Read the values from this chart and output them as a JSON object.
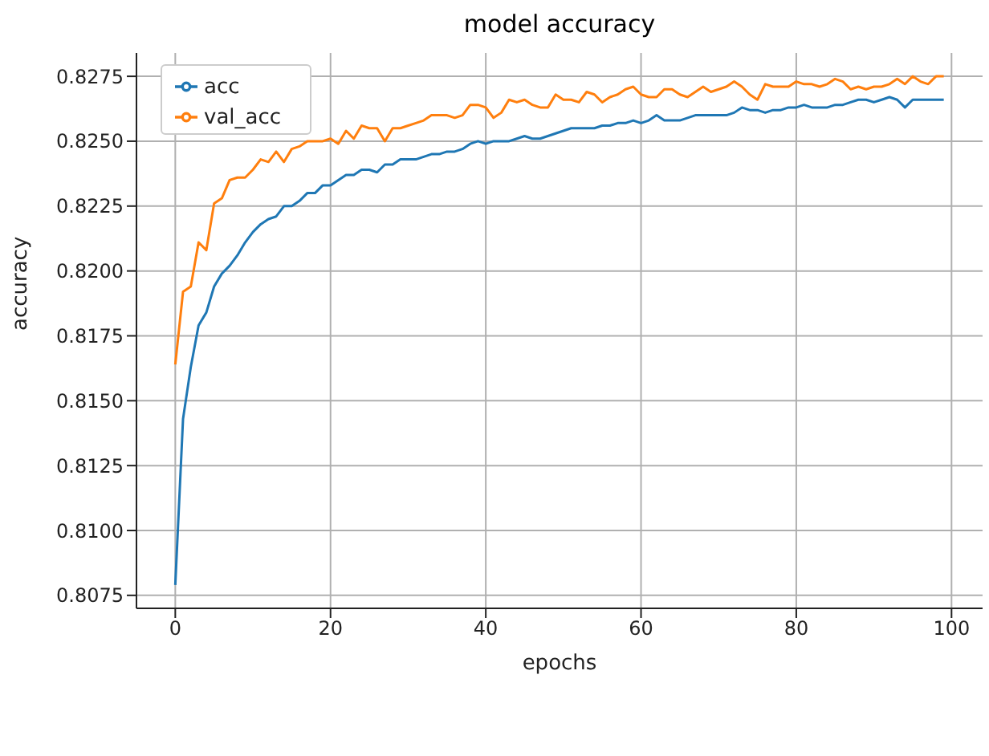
{
  "chart_data": {
    "type": "line",
    "title": "model accuracy",
    "xlabel": "epochs",
    "ylabel": "accuracy",
    "x": [
      0,
      1,
      2,
      3,
      4,
      5,
      6,
      7,
      8,
      9,
      10,
      11,
      12,
      13,
      14,
      15,
      16,
      17,
      18,
      19,
      20,
      21,
      22,
      23,
      24,
      25,
      26,
      27,
      28,
      29,
      30,
      31,
      32,
      33,
      34,
      35,
      36,
      37,
      38,
      39,
      40,
      41,
      42,
      43,
      44,
      45,
      46,
      47,
      48,
      49,
      50,
      51,
      52,
      53,
      54,
      55,
      56,
      57,
      58,
      59,
      60,
      61,
      62,
      63,
      64,
      65,
      66,
      67,
      68,
      69,
      70,
      71,
      72,
      73,
      74,
      75,
      76,
      77,
      78,
      79,
      80,
      81,
      82,
      83,
      84,
      85,
      86,
      87,
      88,
      89,
      90,
      91,
      92,
      93,
      94,
      95,
      96,
      97,
      98,
      99
    ],
    "series": [
      {
        "name": "acc",
        "color": "#1f77b4",
        "values": [
          0.8079,
          0.8143,
          0.8163,
          0.8179,
          0.8184,
          0.8194,
          0.8199,
          0.8202,
          0.8206,
          0.8211,
          0.8215,
          0.8218,
          0.822,
          0.8221,
          0.8225,
          0.8225,
          0.8227,
          0.823,
          0.823,
          0.8233,
          0.8233,
          0.8235,
          0.8237,
          0.8237,
          0.8239,
          0.8239,
          0.8238,
          0.8241,
          0.8241,
          0.8243,
          0.8243,
          0.8243,
          0.8244,
          0.8245,
          0.8245,
          0.8246,
          0.8246,
          0.8247,
          0.8249,
          0.825,
          0.8249,
          0.825,
          0.825,
          0.825,
          0.8251,
          0.8252,
          0.8251,
          0.8251,
          0.8252,
          0.8253,
          0.8254,
          0.8255,
          0.8255,
          0.8255,
          0.8255,
          0.8256,
          0.8256,
          0.8257,
          0.8257,
          0.8258,
          0.8257,
          0.8258,
          0.826,
          0.8258,
          0.8258,
          0.8258,
          0.8259,
          0.826,
          0.826,
          0.826,
          0.826,
          0.826,
          0.8261,
          0.8263,
          0.8262,
          0.8262,
          0.8261,
          0.8262,
          0.8262,
          0.8263,
          0.8263,
          0.8264,
          0.8263,
          0.8263,
          0.8263,
          0.8264,
          0.8264,
          0.8265,
          0.8266,
          0.8266,
          0.8265,
          0.8266,
          0.8267,
          0.8266,
          0.8263,
          0.8266,
          0.8266,
          0.8266,
          0.8266,
          0.8266
        ]
      },
      {
        "name": "val_acc",
        "color": "#ff7f0e",
        "values": [
          0.8164,
          0.8192,
          0.8194,
          0.8211,
          0.8208,
          0.8226,
          0.8228,
          0.8235,
          0.8236,
          0.8236,
          0.8239,
          0.8243,
          0.8242,
          0.8246,
          0.8242,
          0.8247,
          0.8248,
          0.825,
          0.825,
          0.825,
          0.8251,
          0.8249,
          0.8254,
          0.8251,
          0.8256,
          0.8255,
          0.8255,
          0.825,
          0.8255,
          0.8255,
          0.8256,
          0.8257,
          0.8258,
          0.826,
          0.826,
          0.826,
          0.8259,
          0.826,
          0.8264,
          0.8264,
          0.8263,
          0.8259,
          0.8261,
          0.8266,
          0.8265,
          0.8266,
          0.8264,
          0.8263,
          0.8263,
          0.8268,
          0.8266,
          0.8266,
          0.8265,
          0.8269,
          0.8268,
          0.8265,
          0.8267,
          0.8268,
          0.827,
          0.8271,
          0.8268,
          0.8267,
          0.8267,
          0.827,
          0.827,
          0.8268,
          0.8267,
          0.8269,
          0.8271,
          0.8269,
          0.827,
          0.8271,
          0.8273,
          0.8271,
          0.8268,
          0.8266,
          0.8272,
          0.8271,
          0.8271,
          0.8271,
          0.8273,
          0.8272,
          0.8272,
          0.8271,
          0.8272,
          0.8274,
          0.8273,
          0.827,
          0.8271,
          0.827,
          0.8271,
          0.8271,
          0.8272,
          0.8274,
          0.8272,
          0.8275,
          0.8273,
          0.8272,
          0.8275,
          0.8275
        ]
      }
    ],
    "xlim": [
      -5,
      104
    ],
    "xticks": [
      0,
      20,
      40,
      60,
      80,
      100
    ],
    "ylim": [
      0.807,
      0.8284
    ],
    "yticks": [
      0.8075,
      {
        "value": 0.81,
        "label": "0.8100"
      },
      0.8125,
      {
        "value": 0.815,
        "label": "0.8150"
      },
      0.8175,
      {
        "value": 0.82,
        "label": "0.8200"
      },
      0.8225,
      {
        "value": 0.825,
        "label": "0.8250"
      },
      0.8275
    ],
    "grid": true,
    "legend": "top left",
    "marker": "none",
    "line_style": "solid"
  }
}
